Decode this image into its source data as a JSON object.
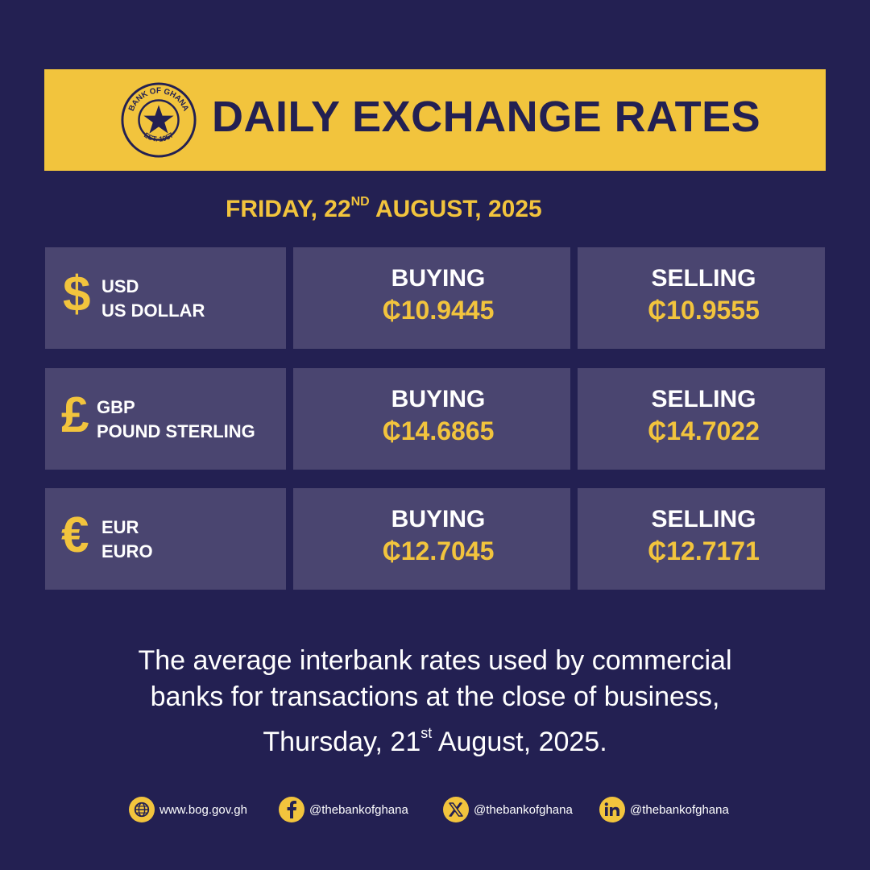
{
  "banner": {
    "title": "DAILY EXCHANGE RATES",
    "seal_text_top": "BANK OF GHANA",
    "seal_text_bottom": "EST. 1957",
    "background_color": "#F2C43D"
  },
  "date": {
    "prefix": "FRIDAY, 22",
    "suffix_sup": "ND",
    "rest": " AUGUST, 2025"
  },
  "rates": [
    {
      "symbol": "$",
      "code": "USD",
      "name": "US DOLLAR",
      "buying_label": "BUYING",
      "buying": "₵10.9445",
      "selling_label": "SELLING",
      "selling": "₵10.9555"
    },
    {
      "symbol": "£",
      "code": "GBP",
      "name": "POUND STERLING",
      "buying_label": "BUYING",
      "buying": "₵14.6865",
      "selling_label": "SELLING",
      "selling": "₵14.7022"
    },
    {
      "symbol": "€",
      "code": "EUR",
      "name": "EURO",
      "buying_label": "BUYING",
      "buying": "₵12.7045",
      "selling_label": "SELLING",
      "selling": "₵12.7171"
    }
  ],
  "footnote": {
    "line1": "The average interbank rates used by commercial",
    "line2": "banks for transactions at the close of business,",
    "line3_prefix": "Thursday, 21",
    "line3_sup": "st",
    "line3_rest": " August, 2025."
  },
  "socials": [
    {
      "icon": "globe-icon",
      "text": "www.bog.gov.gh"
    },
    {
      "icon": "facebook-icon",
      "text": "@thebankofghana"
    },
    {
      "icon": "x-icon",
      "text": "@thebankofghana"
    },
    {
      "icon": "linkedin-icon",
      "text": "@thebankofghana"
    }
  ],
  "colors": {
    "background": "#232052",
    "accent": "#F2C43D",
    "cell": "#4A4570"
  }
}
